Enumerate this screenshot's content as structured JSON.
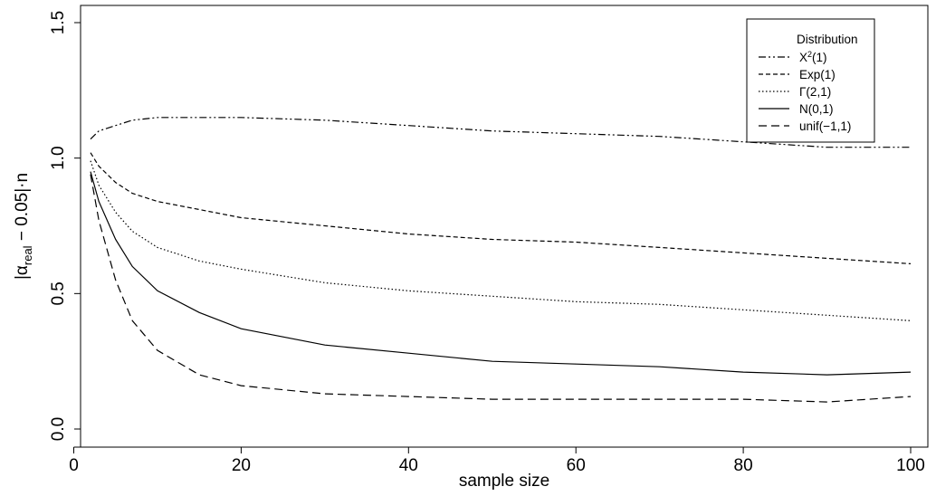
{
  "chart_data": {
    "type": "line",
    "xlabel": "sample size",
    "ylabel_prefix": "|α",
    "ylabel_sub": "real",
    "ylabel_suffix": " − 0.05|·n",
    "xlim": [
      2,
      100
    ],
    "ylim": [
      0.0,
      1.5
    ],
    "xticks": [
      "0",
      "20",
      "40",
      "60",
      "80",
      "100"
    ],
    "xtick_values": [
      0,
      20,
      40,
      60,
      80,
      100
    ],
    "yticks": [
      "0.0",
      "0.5",
      "1.0",
      "1.5"
    ],
    "ytick_values": [
      0.0,
      0.5,
      1.0,
      1.5
    ],
    "grid": false,
    "legend": {
      "title": "Distribution",
      "placement": "top-right",
      "entries": [
        {
          "base": "X",
          "sup": "2",
          "rest": "(1)"
        },
        {
          "base": "Exp(1)",
          "sup": "",
          "rest": ""
        },
        {
          "base": "Γ(2,1)",
          "sup": "",
          "rest": ""
        },
        {
          "base": "N(0,1)",
          "sup": "",
          "rest": ""
        },
        {
          "base": "unif(−1,1)",
          "sup": "",
          "rest": ""
        }
      ]
    },
    "x": [
      2,
      3,
      5,
      7,
      10,
      15,
      20,
      30,
      40,
      50,
      60,
      70,
      80,
      90,
      100
    ],
    "series": [
      {
        "values": [
          1.07,
          1.1,
          1.12,
          1.14,
          1.15,
          1.15,
          1.15,
          1.14,
          1.12,
          1.1,
          1.09,
          1.08,
          1.06,
          1.04,
          1.04
        ],
        "dash": "8,3,2,3,2,3"
      },
      {
        "values": [
          1.02,
          0.97,
          0.91,
          0.87,
          0.84,
          0.81,
          0.78,
          0.75,
          0.72,
          0.7,
          0.69,
          0.67,
          0.65,
          0.63,
          0.61
        ],
        "dash": "5,3"
      },
      {
        "values": [
          0.99,
          0.9,
          0.8,
          0.73,
          0.67,
          0.62,
          0.59,
          0.54,
          0.51,
          0.49,
          0.47,
          0.46,
          0.44,
          0.42,
          0.4
        ],
        "dash": "1.5,2.5"
      },
      {
        "values": [
          0.95,
          0.84,
          0.7,
          0.6,
          0.51,
          0.43,
          0.37,
          0.31,
          0.28,
          0.25,
          0.24,
          0.23,
          0.21,
          0.2,
          0.21
        ],
        "dash": ""
      },
      {
        "values": [
          0.94,
          0.77,
          0.55,
          0.4,
          0.29,
          0.2,
          0.16,
          0.13,
          0.12,
          0.11,
          0.11,
          0.11,
          0.11,
          0.1,
          0.12
        ],
        "dash": "9,5"
      }
    ]
  }
}
